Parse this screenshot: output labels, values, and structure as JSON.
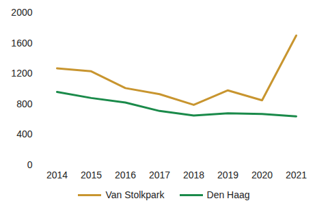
{
  "chart_data": {
    "type": "line",
    "x": [
      2014,
      2015,
      2016,
      2017,
      2018,
      2019,
      2020,
      2021
    ],
    "series": [
      {
        "name": "Van Stolkpark",
        "color": "#c8952f",
        "values": [
          1270,
          1230,
          1010,
          930,
          790,
          980,
          850,
          1700
        ]
      },
      {
        "name": "Den Haag",
        "color": "#1a8a4a",
        "values": [
          960,
          880,
          820,
          710,
          650,
          680,
          670,
          640
        ]
      }
    ],
    "ylim": [
      0,
      2000
    ],
    "yticks": [
      0,
      400,
      800,
      1200,
      1600,
      2000
    ],
    "grid": false,
    "legend": "bottom"
  }
}
